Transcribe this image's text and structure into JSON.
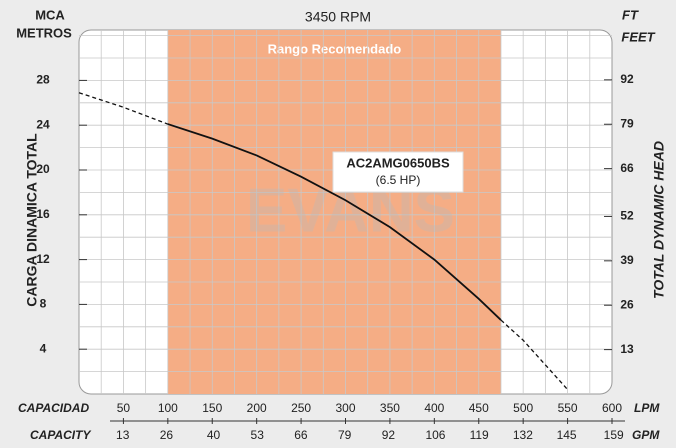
{
  "chart_data": {
    "type": "line",
    "title": "3450 RPM",
    "y_unit_top": "MCA",
    "y_unit": "METROS",
    "y2_unit_top": "FT",
    "y2_unit": "FEET",
    "ylabel": "CARGA DINAMICA TOTAL",
    "y2label": "TOTAL DYNAMIC HEAD",
    "xlabel": "CAPACIDAD",
    "x_unit": "LPM",
    "x2label": "CAPACITY",
    "x2_unit": "GPM",
    "watermark": "EVANS",
    "recommended_label": "Rango Recomendado",
    "recommended_range": [
      100,
      475
    ],
    "model": "AC2AMG0650BS",
    "power": "(6.5 HP)",
    "x": [
      0,
      50,
      100,
      150,
      200,
      250,
      300,
      350,
      400,
      450,
      475,
      500,
      550
    ],
    "values": [
      26.9,
      25.6,
      24.1,
      22.8,
      21.3,
      19.4,
      17.3,
      14.9,
      12.0,
      8.5,
      6.6,
      4.8,
      0.4
    ],
    "color": "#111111",
    "range_color": "#f5ad85",
    "xlim": [
      0,
      600
    ],
    "xticks": [
      50,
      100,
      150,
      200,
      250,
      300,
      350,
      400,
      450,
      500,
      550,
      600
    ],
    "x2lim": [
      0,
      158.5
    ],
    "x2ticks": [
      13,
      26,
      40,
      53,
      66,
      79,
      92,
      106,
      119,
      132,
      145,
      159
    ],
    "ylim": [
      0,
      32.5
    ],
    "yticks": [
      4,
      8,
      12,
      16,
      20,
      24,
      28
    ],
    "y2lim": [
      0,
      106.6
    ],
    "y2ticks": [
      13,
      26,
      39,
      52,
      66,
      79,
      92
    ],
    "grid": true,
    "minor_grid": {
      "x": 25,
      "y": 2
    }
  }
}
